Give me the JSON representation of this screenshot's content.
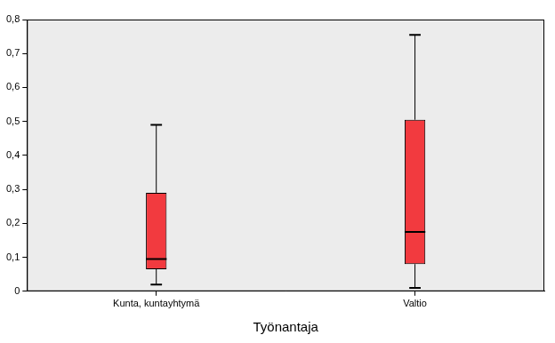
{
  "chart_data": {
    "type": "boxplot",
    "xlabel": "Työnantaja",
    "categories": [
      "Kunta, kuntayhtymä",
      "Valtio"
    ],
    "min": [
      0.02,
      0.01
    ],
    "q1": [
      0.065,
      0.08
    ],
    "median": [
      0.095,
      0.175
    ],
    "q3": [
      0.29,
      0.505
    ],
    "max": [
      0.49,
      0.755
    ],
    "color": "#f23a3f",
    "ylim": [
      0,
      0.8
    ],
    "yticks": [
      0,
      {
        "value": 0.1,
        "label": "0,1"
      },
      {
        "value": 0.2,
        "label": "0,2"
      },
      {
        "value": 0.3,
        "label": "0,3"
      },
      {
        "value": 0.4,
        "label": "0,4"
      },
      {
        "value": 0.5,
        "label": "0,5"
      },
      {
        "value": 0.6,
        "label": "0,6"
      },
      {
        "value": 0.7,
        "label": "0,7"
      },
      {
        "value": 0.8,
        "label": "0,8"
      }
    ],
    "grid": false
  }
}
